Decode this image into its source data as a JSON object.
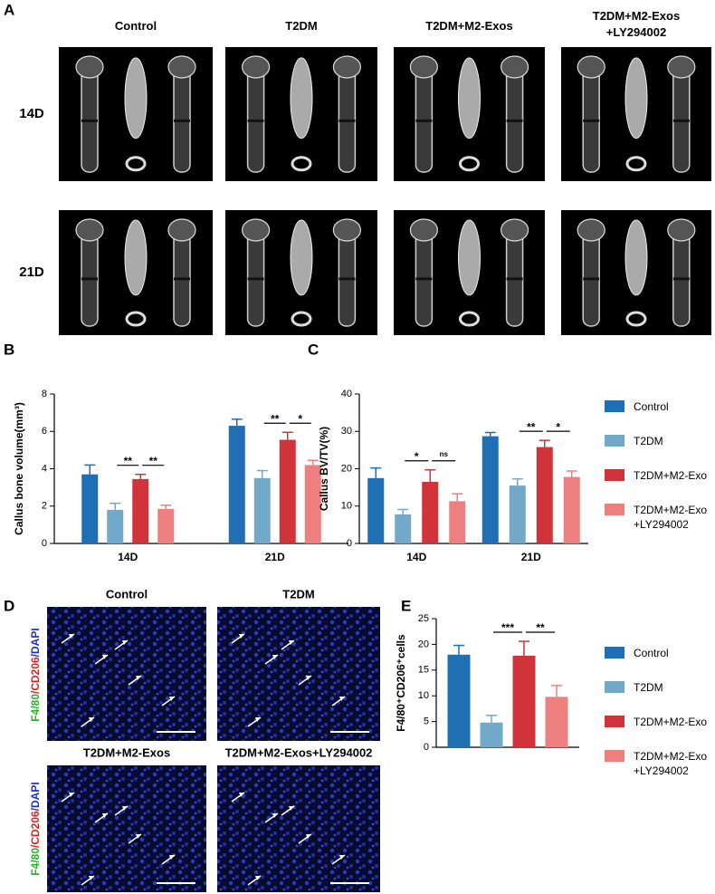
{
  "figure": {
    "panels": [
      "A",
      "B",
      "C",
      "D",
      "E"
    ],
    "panel_a": {
      "columns": [
        "Control",
        "T2DM",
        "T2DM+M2-Exos",
        "T2DM+M2-Exos\n+LY294002"
      ],
      "rows": [
        "14D",
        "21D"
      ]
    },
    "panel_d": {
      "titles": [
        "Control",
        "T2DM",
        "T2DM+M2-Exos",
        "T2DM+M2-Exos+LY294002"
      ],
      "stain": [
        "F4/80",
        "/CD206",
        "/DAPI"
      ]
    }
  },
  "chart_data": [
    {
      "type": "bar",
      "ylabel": "Callus bone volume(mm³)",
      "categories": [
        "14D",
        "21D"
      ],
      "series": [
        {
          "color": "#1f6fb4",
          "values": [
            3.7,
            6.3
          ],
          "errors": [
            0.5,
            0.35
          ]
        },
        {
          "color": "#72a9c9",
          "values": [
            1.8,
            3.5
          ],
          "errors": [
            0.35,
            0.4
          ]
        },
        {
          "color": "#d0333a",
          "values": [
            3.45,
            5.55
          ],
          "errors": [
            0.25,
            0.4
          ]
        },
        {
          "color": "#ee7f7f",
          "values": [
            1.85,
            4.2
          ],
          "errors": [
            0.2,
            0.25
          ]
        }
      ],
      "significance": [
        [
          "**",
          "**"
        ],
        [
          "**",
          "*"
        ]
      ],
      "ylim": [
        0,
        8
      ],
      "yticks": [
        0,
        2,
        4,
        6,
        8
      ]
    },
    {
      "type": "bar",
      "ylabel": "Callus BV/TV(%)",
      "categories": [
        "14D",
        "21D"
      ],
      "series": [
        {
          "name": "Control",
          "color": "#1f6fb4",
          "values": [
            17.5,
            28.7
          ],
          "errors": [
            2.7,
            1.0
          ]
        },
        {
          "name": "T2DM",
          "color": "#72a9c9",
          "values": [
            7.8,
            15.5
          ],
          "errors": [
            1.3,
            1.8
          ]
        },
        {
          "name": "T2DM+M2-Exo",
          "color": "#d0333a",
          "values": [
            16.5,
            25.8
          ],
          "errors": [
            3.2,
            1.8
          ]
        },
        {
          "name": "T2DM+M2-Exo +LY294002",
          "color": "#ee7f7f",
          "values": [
            11.3,
            17.8
          ],
          "errors": [
            2.0,
            1.6
          ]
        }
      ],
      "significance": [
        [
          "*",
          "ns"
        ],
        [
          "**",
          "*"
        ]
      ],
      "ylim": [
        0,
        40
      ],
      "yticks": [
        0,
        10,
        20,
        30,
        40
      ],
      "legend": "right"
    },
    {
      "type": "bar",
      "ylabel": "F4/80⁺CD206⁺cells",
      "series": [
        {
          "name": "Control",
          "color": "#1f6fb4",
          "values": [
            18
          ],
          "errors": [
            1.8
          ]
        },
        {
          "name": "T2DM",
          "color": "#72a9c9",
          "values": [
            4.8
          ],
          "errors": [
            1.4
          ]
        },
        {
          "name": "T2DM+M2-Exo",
          "color": "#d0333a",
          "values": [
            17.8
          ],
          "errors": [
            2.8
          ]
        },
        {
          "name": "T2DM+M2-Exo +LY294002",
          "color": "#ee7f7f",
          "values": [
            9.8
          ],
          "errors": [
            2.2
          ]
        }
      ],
      "significance": [
        [
          "***",
          "**"
        ]
      ],
      "ylim": [
        0,
        25
      ],
      "yticks": [
        0,
        5,
        10,
        15,
        20,
        25
      ],
      "legend": "right"
    }
  ]
}
